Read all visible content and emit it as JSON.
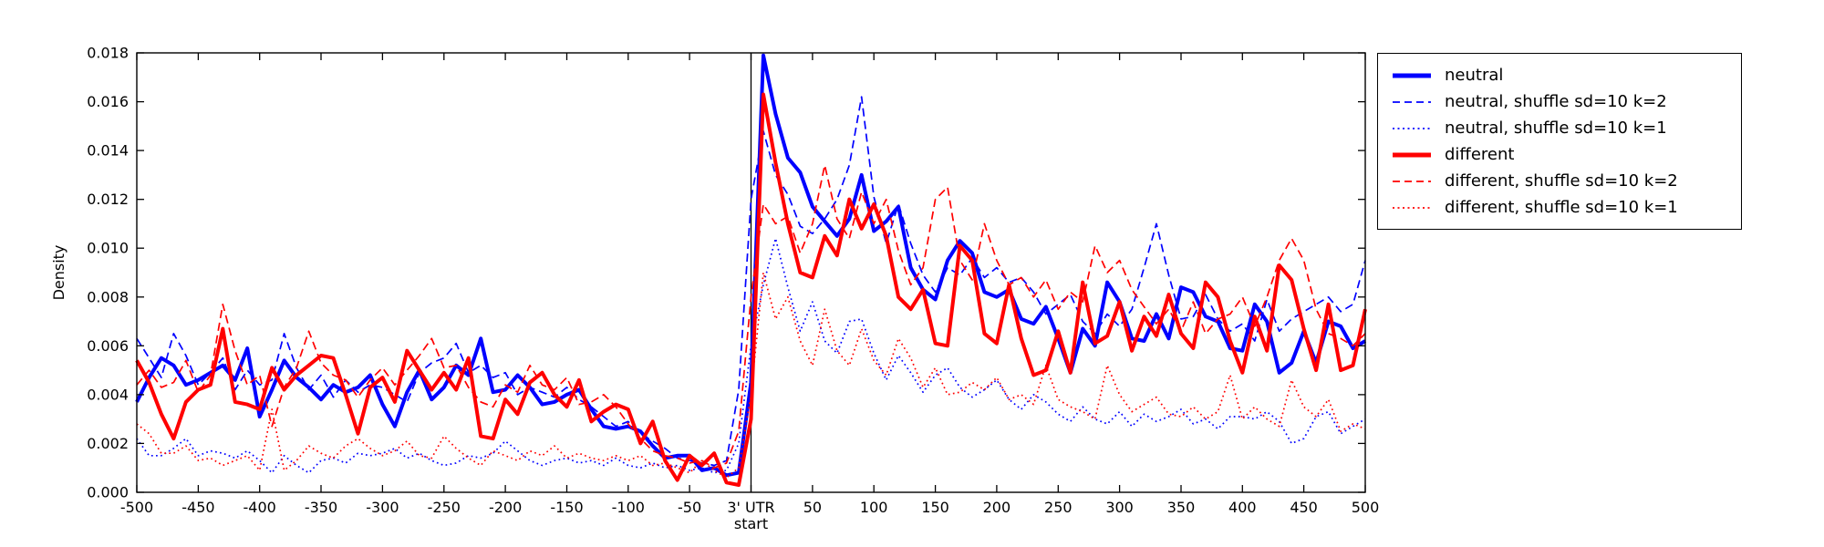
{
  "chart_data": {
    "type": "line",
    "title": "",
    "xlabel": "",
    "ylabel": "Density",
    "grid": false,
    "legend_position": "outside-top-right",
    "xlim": [
      -500,
      500
    ],
    "ylim": [
      0,
      0.018
    ],
    "marker_line_x": 0,
    "xticks": [
      {
        "value": -500,
        "label": "-500"
      },
      {
        "value": -450,
        "label": "-450"
      },
      {
        "value": -400,
        "label": "-400"
      },
      {
        "value": -350,
        "label": "-350"
      },
      {
        "value": -300,
        "label": "-300"
      },
      {
        "value": -250,
        "label": "-250"
      },
      {
        "value": -200,
        "label": "-200"
      },
      {
        "value": -150,
        "label": "-150"
      },
      {
        "value": -100,
        "label": "-100"
      },
      {
        "value": -50,
        "label": "-50"
      },
      {
        "value": 0,
        "label": "3' UTR\nstart"
      },
      {
        "value": 50,
        "label": "50"
      },
      {
        "value": 100,
        "label": "100"
      },
      {
        "value": 150,
        "label": "150"
      },
      {
        "value": 200,
        "label": "200"
      },
      {
        "value": 250,
        "label": "250"
      },
      {
        "value": 300,
        "label": "300"
      },
      {
        "value": 350,
        "label": "350"
      },
      {
        "value": 400,
        "label": "400"
      },
      {
        "value": 450,
        "label": "450"
      },
      {
        "value": 500,
        "label": "500"
      }
    ],
    "yticks": [
      {
        "value": 0.0,
        "label": "0.000"
      },
      {
        "value": 0.002,
        "label": "0.002"
      },
      {
        "value": 0.004,
        "label": "0.004"
      },
      {
        "value": 0.006,
        "label": "0.006"
      },
      {
        "value": 0.008,
        "label": "0.008"
      },
      {
        "value": 0.01,
        "label": "0.010"
      },
      {
        "value": 0.012,
        "label": "0.012"
      },
      {
        "value": 0.014,
        "label": "0.014"
      },
      {
        "value": 0.016,
        "label": "0.016"
      },
      {
        "value": 0.018,
        "label": "0.018"
      }
    ],
    "x": [
      -500,
      -490,
      -480,
      -470,
      -460,
      -450,
      -440,
      -430,
      -420,
      -410,
      -400,
      -390,
      -380,
      -370,
      -360,
      -350,
      -340,
      -330,
      -320,
      -310,
      -300,
      -290,
      -280,
      -270,
      -260,
      -250,
      -240,
      -230,
      -220,
      -210,
      -200,
      -190,
      -180,
      -170,
      -160,
      -150,
      -140,
      -130,
      -120,
      -110,
      -100,
      -90,
      -80,
      -70,
      -60,
      -50,
      -40,
      -30,
      -20,
      -10,
      0,
      10,
      20,
      30,
      40,
      50,
      60,
      70,
      80,
      90,
      100,
      110,
      120,
      130,
      140,
      150,
      160,
      170,
      180,
      190,
      200,
      210,
      220,
      230,
      240,
      250,
      260,
      270,
      280,
      290,
      300,
      310,
      320,
      330,
      340,
      350,
      360,
      370,
      380,
      390,
      400,
      410,
      420,
      430,
      440,
      450,
      460,
      470,
      480,
      490,
      500
    ],
    "series": [
      {
        "id": "neutral",
        "name": "neutral",
        "color": "#0000ff",
        "style": "solid",
        "values": [
          0.0037,
          0.0047,
          0.0055,
          0.0052,
          0.0044,
          0.0046,
          0.0049,
          0.0052,
          0.0046,
          0.0059,
          0.0031,
          0.0042,
          0.0054,
          0.0047,
          0.0043,
          0.0038,
          0.0044,
          0.0041,
          0.0043,
          0.0048,
          0.0036,
          0.0027,
          0.0041,
          0.005,
          0.0038,
          0.0043,
          0.0052,
          0.0048,
          0.0063,
          0.0041,
          0.0042,
          0.0048,
          0.0043,
          0.0036,
          0.0037,
          0.004,
          0.0042,
          0.0034,
          0.0027,
          0.0026,
          0.0027,
          0.0025,
          0.0019,
          0.0014,
          0.0015,
          0.0015,
          0.0009,
          0.001,
          0.0007,
          0.0008,
          0.0045,
          0.0179,
          0.0155,
          0.0137,
          0.0131,
          0.0117,
          0.0111,
          0.0105,
          0.0112,
          0.013,
          0.0107,
          0.0111,
          0.0117,
          0.0092,
          0.0083,
          0.0079,
          0.0095,
          0.0103,
          0.0098,
          0.0082,
          0.008,
          0.0083,
          0.0071,
          0.0069,
          0.0076,
          0.0063,
          0.0049,
          0.0067,
          0.006,
          0.0086,
          0.0078,
          0.0063,
          0.0062,
          0.0073,
          0.0063,
          0.0084,
          0.0082,
          0.0072,
          0.007,
          0.0059,
          0.0058,
          0.0077,
          0.007,
          0.0049,
          0.0053,
          0.0066,
          0.0053,
          0.007,
          0.0068,
          0.0059,
          0.0062
        ]
      },
      {
        "id": "neutral-shuffle-sd10-k2",
        "name": "neutral, shuffle sd=10 k=2",
        "color": "#0000ff",
        "style": "dashed",
        "values": [
          0.0063,
          0.0055,
          0.0047,
          0.0065,
          0.0056,
          0.0044,
          0.0049,
          0.0055,
          0.0042,
          0.005,
          0.0044,
          0.0046,
          0.0065,
          0.0051,
          0.0042,
          0.0048,
          0.0039,
          0.0046,
          0.0041,
          0.0044,
          0.0043,
          0.004,
          0.0037,
          0.0049,
          0.0053,
          0.0055,
          0.0061,
          0.0049,
          0.0052,
          0.0047,
          0.0049,
          0.004,
          0.0043,
          0.0041,
          0.0039,
          0.0043,
          0.0038,
          0.0035,
          0.0031,
          0.0027,
          0.0029,
          0.0024,
          0.0021,
          0.0018,
          0.0014,
          0.0013,
          0.0012,
          0.0011,
          0.0013,
          0.0042,
          0.012,
          0.0148,
          0.013,
          0.0122,
          0.0109,
          0.0106,
          0.0112,
          0.012,
          0.0134,
          0.0162,
          0.0121,
          0.0102,
          0.0118,
          0.0102,
          0.0089,
          0.0082,
          0.0092,
          0.0089,
          0.0096,
          0.0088,
          0.0092,
          0.0086,
          0.0088,
          0.0082,
          0.0073,
          0.0077,
          0.0081,
          0.007,
          0.0065,
          0.0073,
          0.0068,
          0.0075,
          0.0092,
          0.011,
          0.0089,
          0.0071,
          0.0072,
          0.0081,
          0.0071,
          0.0066,
          0.0069,
          0.0062,
          0.0079,
          0.0066,
          0.0071,
          0.0074,
          0.0077,
          0.008,
          0.0074,
          0.0077,
          0.0095
        ]
      },
      {
        "id": "neutral-shuffle-sd10-k1",
        "name": "neutral, shuffle sd=10 k=1",
        "color": "#0000ff",
        "style": "dotted",
        "values": [
          0.0022,
          0.0015,
          0.0015,
          0.0018,
          0.0022,
          0.0015,
          0.0017,
          0.0016,
          0.0014,
          0.0017,
          0.0013,
          0.0008,
          0.0015,
          0.0011,
          0.0008,
          0.0013,
          0.0014,
          0.0012,
          0.0016,
          0.0015,
          0.0016,
          0.0018,
          0.0014,
          0.0016,
          0.0013,
          0.0011,
          0.0012,
          0.0015,
          0.0014,
          0.0016,
          0.0021,
          0.0017,
          0.0013,
          0.0011,
          0.0013,
          0.0014,
          0.0012,
          0.0013,
          0.0011,
          0.0014,
          0.0011,
          0.001,
          0.0012,
          0.001,
          0.0011,
          0.0009,
          0.001,
          0.0008,
          0.0009,
          0.002,
          0.006,
          0.0085,
          0.0104,
          0.0084,
          0.0066,
          0.0078,
          0.0062,
          0.0057,
          0.007,
          0.0071,
          0.0057,
          0.0046,
          0.0056,
          0.0049,
          0.0041,
          0.0048,
          0.0051,
          0.0043,
          0.0039,
          0.0042,
          0.0046,
          0.0038,
          0.0034,
          0.004,
          0.0037,
          0.0032,
          0.0029,
          0.0035,
          0.003,
          0.0028,
          0.0033,
          0.0027,
          0.0032,
          0.0029,
          0.0031,
          0.0034,
          0.0028,
          0.003,
          0.0026,
          0.0031,
          0.0031,
          0.003,
          0.0033,
          0.0029,
          0.002,
          0.0022,
          0.0031,
          0.0033,
          0.0024,
          0.0027,
          0.003
        ]
      },
      {
        "id": "different",
        "name": "different",
        "color": "#ff0000",
        "style": "solid",
        "values": [
          0.0054,
          0.0045,
          0.0032,
          0.0022,
          0.0037,
          0.0042,
          0.0044,
          0.0067,
          0.0037,
          0.0036,
          0.0034,
          0.0051,
          0.0042,
          0.0048,
          0.0052,
          0.0056,
          0.0055,
          0.004,
          0.0024,
          0.0043,
          0.0047,
          0.0037,
          0.0058,
          0.005,
          0.0042,
          0.0049,
          0.0042,
          0.0055,
          0.0023,
          0.0022,
          0.0038,
          0.0032,
          0.0045,
          0.0049,
          0.004,
          0.0035,
          0.0046,
          0.0029,
          0.0033,
          0.0036,
          0.0034,
          0.002,
          0.0029,
          0.0013,
          0.0005,
          0.0015,
          0.0011,
          0.0016,
          0.0004,
          0.0003,
          0.003,
          0.0163,
          0.0135,
          0.011,
          0.009,
          0.0088,
          0.0105,
          0.0097,
          0.012,
          0.0108,
          0.0118,
          0.0105,
          0.008,
          0.0075,
          0.0083,
          0.0061,
          0.006,
          0.0101,
          0.0095,
          0.0065,
          0.0061,
          0.0085,
          0.0063,
          0.0048,
          0.005,
          0.0066,
          0.0049,
          0.0086,
          0.0061,
          0.0064,
          0.0078,
          0.0058,
          0.0072,
          0.0064,
          0.0081,
          0.0065,
          0.0059,
          0.0086,
          0.008,
          0.0062,
          0.0049,
          0.0072,
          0.0058,
          0.0093,
          0.0087,
          0.0067,
          0.005,
          0.0077,
          0.005,
          0.0052,
          0.0075
        ]
      },
      {
        "id": "different-shuffle-sd10-k2",
        "name": "different, shuffle sd=10 k=2",
        "color": "#ff0000",
        "style": "dashed",
        "values": [
          0.0044,
          0.005,
          0.0043,
          0.0045,
          0.0054,
          0.0041,
          0.0048,
          0.0077,
          0.0058,
          0.0044,
          0.0048,
          0.0027,
          0.0043,
          0.0051,
          0.0066,
          0.0053,
          0.0048,
          0.0046,
          0.0039,
          0.0046,
          0.0051,
          0.0044,
          0.005,
          0.0056,
          0.0063,
          0.0051,
          0.0052,
          0.0043,
          0.0037,
          0.0035,
          0.0044,
          0.0041,
          0.0052,
          0.0044,
          0.0042,
          0.0047,
          0.0036,
          0.0037,
          0.004,
          0.0035,
          0.0028,
          0.0022,
          0.0017,
          0.0015,
          0.0014,
          0.0012,
          0.0013,
          0.001,
          0.0012,
          0.0025,
          0.008,
          0.0118,
          0.011,
          0.0113,
          0.0098,
          0.011,
          0.0134,
          0.0112,
          0.0104,
          0.0123,
          0.011,
          0.012,
          0.0099,
          0.0085,
          0.0092,
          0.012,
          0.0125,
          0.0095,
          0.0087,
          0.011,
          0.0095,
          0.0085,
          0.0088,
          0.008,
          0.0087,
          0.0075,
          0.0082,
          0.0078,
          0.0101,
          0.009,
          0.0095,
          0.0083,
          0.0076,
          0.0069,
          0.0075,
          0.0066,
          0.0078,
          0.0065,
          0.0071,
          0.0073,
          0.008,
          0.0068,
          0.008,
          0.0095,
          0.0104,
          0.0095,
          0.0075,
          0.0065,
          0.0063,
          0.006,
          0.0065
        ]
      },
      {
        "id": "different-shuffle-sd10-k1",
        "name": "different, shuffle sd=10 k=1",
        "color": "#ff0000",
        "style": "dotted",
        "values": [
          0.0028,
          0.0024,
          0.0016,
          0.0016,
          0.0019,
          0.0013,
          0.0014,
          0.0011,
          0.0013,
          0.0015,
          0.0009,
          0.0034,
          0.0009,
          0.0013,
          0.0019,
          0.0016,
          0.0014,
          0.0019,
          0.0022,
          0.0018,
          0.0015,
          0.0017,
          0.0021,
          0.0015,
          0.0014,
          0.0023,
          0.0018,
          0.0014,
          0.0011,
          0.0017,
          0.0015,
          0.0013,
          0.0017,
          0.0015,
          0.0019,
          0.0014,
          0.0016,
          0.0014,
          0.0013,
          0.0015,
          0.0013,
          0.0015,
          0.0011,
          0.0012,
          0.001,
          0.0008,
          0.0013,
          0.0009,
          0.0006,
          0.001,
          0.004,
          0.009,
          0.0071,
          0.008,
          0.0062,
          0.0052,
          0.0075,
          0.0058,
          0.0052,
          0.0067,
          0.0054,
          0.0048,
          0.0063,
          0.0055,
          0.0043,
          0.0051,
          0.004,
          0.0041,
          0.0045,
          0.0042,
          0.0047,
          0.0038,
          0.004,
          0.0036,
          0.0052,
          0.0038,
          0.0035,
          0.0033,
          0.003,
          0.0052,
          0.004,
          0.0033,
          0.0036,
          0.0039,
          0.0032,
          0.0031,
          0.0035,
          0.003,
          0.0033,
          0.0048,
          0.003,
          0.0035,
          0.003,
          0.0027,
          0.0046,
          0.0035,
          0.0031,
          0.0038,
          0.0025,
          0.0028,
          0.0026
        ]
      }
    ]
  }
}
